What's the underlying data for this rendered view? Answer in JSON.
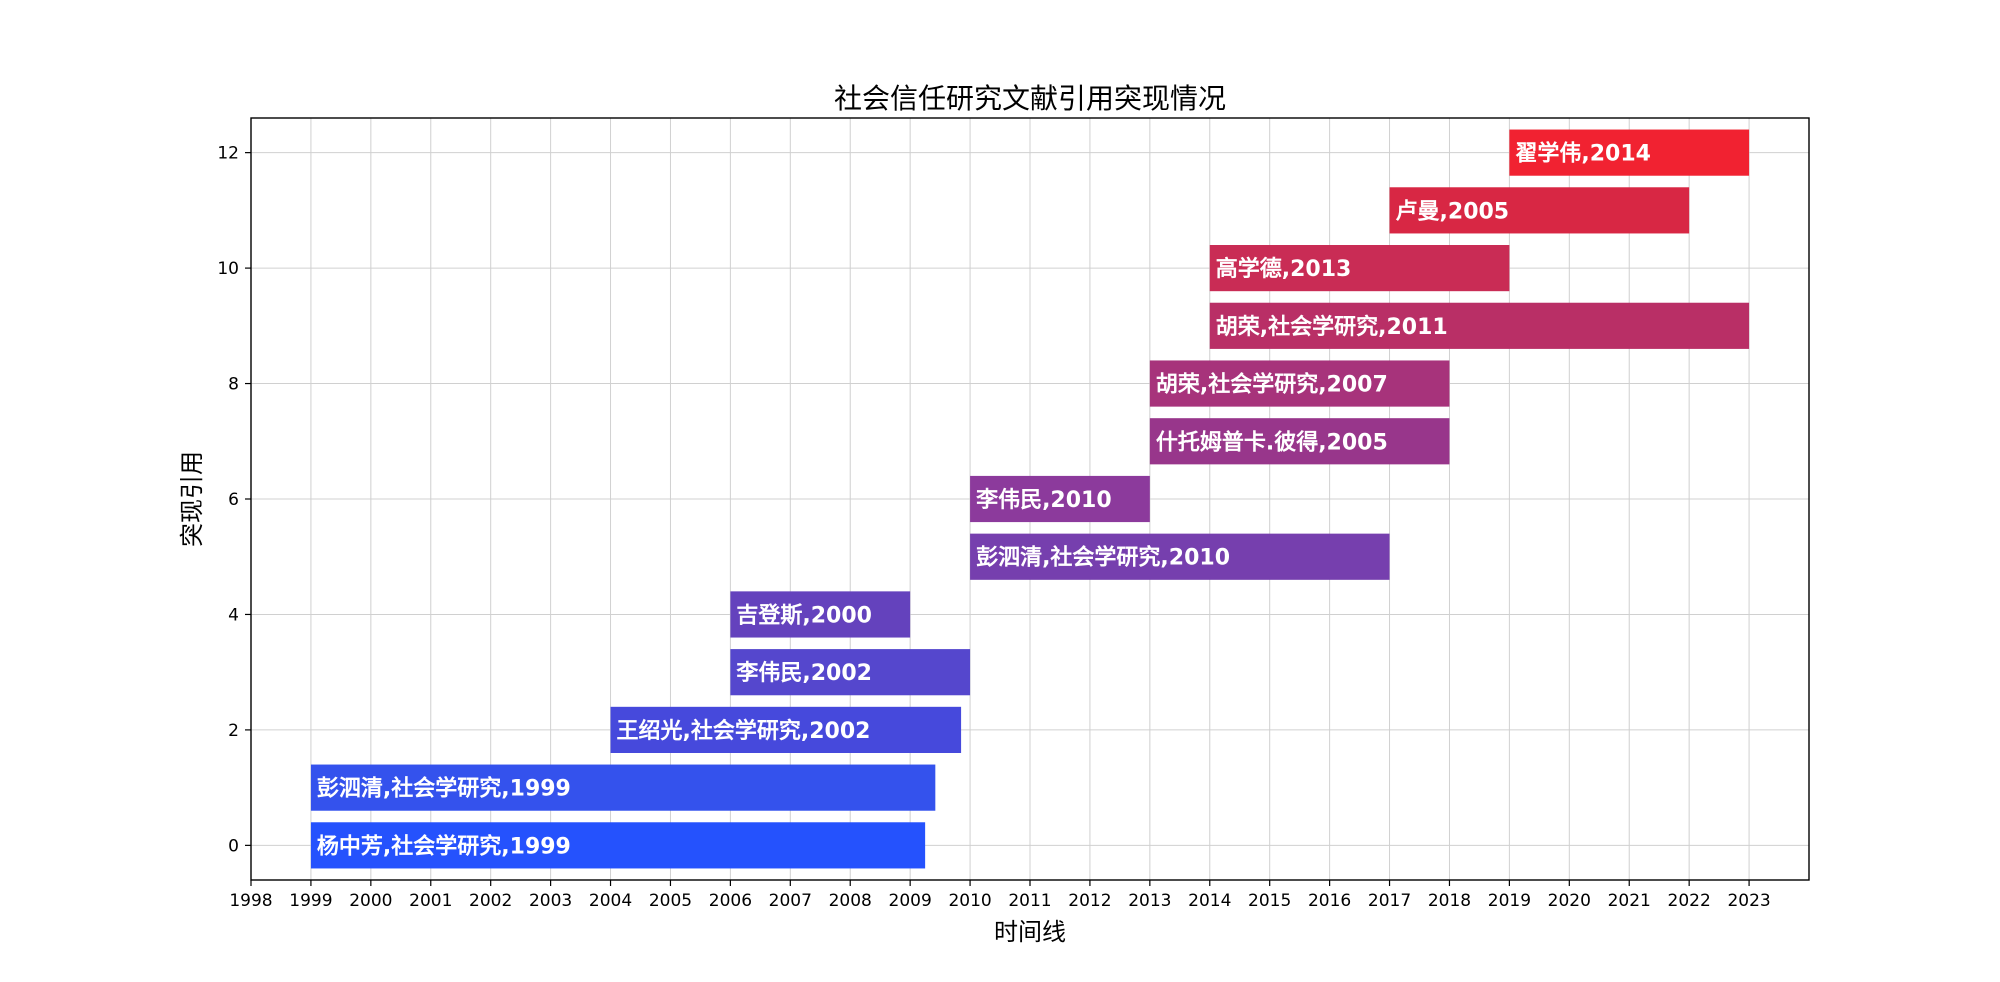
{
  "chart_data": {
    "type": "bar",
    "orientation": "horizontal",
    "title": "社会信任研究文献引用突现情况",
    "xlabel": "时间线",
    "ylabel": "突现引用",
    "xlim": [
      1998,
      2024
    ],
    "ylim": [
      -0.6,
      12.6
    ],
    "x_ticks": [
      1998,
      1999,
      2000,
      2001,
      2002,
      2003,
      2004,
      2005,
      2006,
      2007,
      2008,
      2009,
      2010,
      2011,
      2012,
      2013,
      2014,
      2015,
      2016,
      2017,
      2018,
      2019,
      2020,
      2021,
      2022,
      2023
    ],
    "y_ticks": [
      0,
      2,
      4,
      6,
      8,
      10,
      12
    ],
    "grid": true,
    "bars": [
      {
        "y": 0,
        "start": 1999,
        "end": 2009.25,
        "label": "杨中芳,社会学研究,1999",
        "color": "#2552fd"
      },
      {
        "y": 1,
        "start": 1999,
        "end": 2009.42,
        "label": "彭泗清,社会学研究,1999",
        "color": "#3452ed"
      },
      {
        "y": 2,
        "start": 2004,
        "end": 2009.85,
        "label": "王绍光,社会学研究,2002",
        "color": "#4649dc"
      },
      {
        "y": 3,
        "start": 2006,
        "end": 2010,
        "label": "李伟民,2002",
        "color": "#5547cd"
      },
      {
        "y": 4,
        "start": 2006,
        "end": 2009,
        "label": "吉登斯,2000",
        "color": "#6442bd"
      },
      {
        "y": 5,
        "start": 2010,
        "end": 2017,
        "label": "彭泗清,社会学研究,2010",
        "color": "#763fae"
      },
      {
        "y": 6,
        "start": 2010,
        "end": 2013,
        "label": "李伟民,2010",
        "color": "#8c3a9c"
      },
      {
        "y": 7,
        "start": 2013,
        "end": 2018,
        "label": "什托姆普卡.彼得,2005",
        "color": "#98368b"
      },
      {
        "y": 8,
        "start": 2013,
        "end": 2018,
        "label": "胡荣,社会学研究,2007",
        "color": "#a7337b"
      },
      {
        "y": 9,
        "start": 2014,
        "end": 2023,
        "label": "胡荣,社会学研究,2011",
        "color": "#b92f66"
      },
      {
        "y": 10,
        "start": 2014,
        "end": 2019,
        "label": "高学德,2013",
        "color": "#c92c55"
      },
      {
        "y": 11,
        "start": 2017,
        "end": 2022,
        "label": "卢曼,2005",
        "color": "#d82744"
      },
      {
        "y": 12,
        "start": 2019,
        "end": 2023,
        "label": "翟学伟,2014",
        "color": "#f12231"
      }
    ]
  }
}
